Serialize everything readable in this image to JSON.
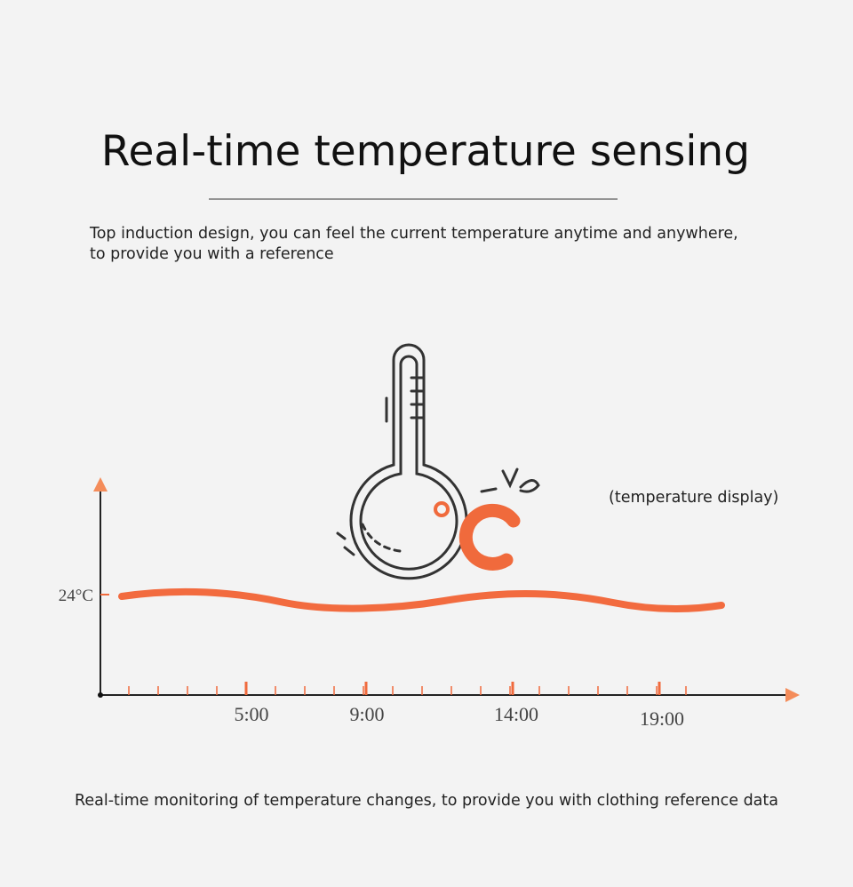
{
  "header": {
    "title": "Real-time temperature sensing",
    "subtitle": [
      "Top induction design, you can feel the current temperature anytime and anywhere,",
      "to provide you with a reference"
    ]
  },
  "illustration": {
    "label": "(temperature display)"
  },
  "graph": {
    "y_label": "24°C",
    "x_labels": [
      "5:00",
      "9:00",
      "14:00",
      "19:00"
    ]
  },
  "footer": {
    "caption": "Real-time monitoring of temperature changes, to provide you with clothing reference data"
  }
}
